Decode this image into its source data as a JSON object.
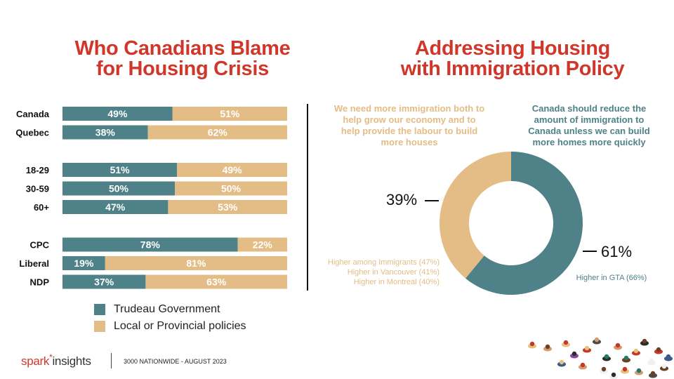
{
  "left_title": [
    "Who Canadians Blame",
    "for Housing Crisis"
  ],
  "right_title": [
    "Addressing Housing",
    "with Immigration Policy"
  ],
  "colors": {
    "teal": "#4f8188",
    "sand": "#e3bd85",
    "red": "#d0372a"
  },
  "chart_data": [
    {
      "type": "bar",
      "orientation": "horizontal",
      "stacked": true,
      "title": "Who Canadians Blame for Housing Crisis",
      "categories": [
        "Canada",
        "Quebec",
        "18-29",
        "30-59",
        "60+",
        "CPC",
        "Liberal",
        "NDP"
      ],
      "groups": [
        [
          "Canada",
          "Quebec"
        ],
        [
          "18-29",
          "30-59",
          "60+"
        ],
        [
          "CPC",
          "Liberal",
          "NDP"
        ]
      ],
      "series": [
        {
          "name": "Trudeau Government",
          "values": [
            49,
            38,
            51,
            50,
            47,
            78,
            19,
            37
          ]
        },
        {
          "name": "Local or Provincial policies",
          "values": [
            51,
            62,
            49,
            50,
            53,
            22,
            81,
            63
          ]
        }
      ],
      "value_format": "%",
      "legend_position": "bottom-left"
    },
    {
      "type": "pie",
      "style": "donut",
      "title": "Addressing Housing with Immigration Policy",
      "slices": [
        {
          "label": "Canada should reduce the amount of immigration to Canada unless we can build more homes more quickly",
          "value": 61,
          "display": "61%",
          "notes": [
            "Higher in GTA (66%)"
          ]
        },
        {
          "label": "We need more immigration both to help grow our economy and to help provide the labour to build more houses",
          "value": 39,
          "display": "39%",
          "notes": [
            "Higher among Immigrants (47%)",
            "Higher in Vancouver (41%)",
            "Higher in Montreal (40%)"
          ]
        }
      ]
    }
  ],
  "statements": {
    "left": [
      "We need more immigration both to",
      "help grow our economy and to",
      "help provide the labour to build",
      "more houses"
    ],
    "right": [
      "Canada should reduce the",
      "amount of immigration to",
      "Canada unless we can build",
      "more homes more quickly"
    ]
  },
  "footer": {
    "logo_left": "spark",
    "logo_star": "*",
    "logo_right": "insights",
    "note": "3000 NATIONWIDE - AUGUST 2023"
  }
}
